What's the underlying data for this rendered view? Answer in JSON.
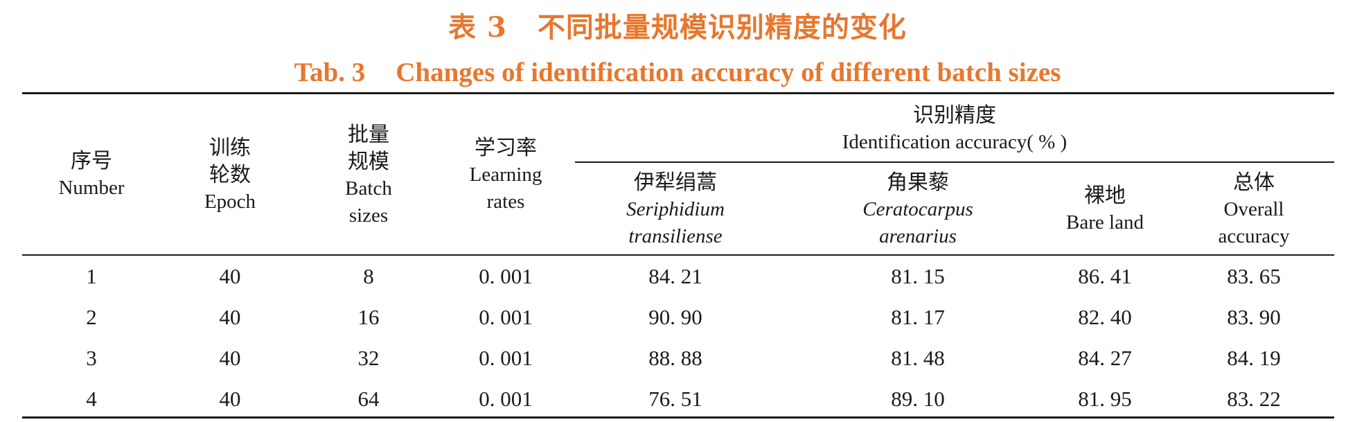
{
  "caption": {
    "cn_label": "表 3",
    "cn_title": "不同批量规模识别精度的变化",
    "en_label": "Tab. 3",
    "en_title": "Changes of identification accuracy of different batch sizes"
  },
  "headers": {
    "number": {
      "cn": "序号",
      "en": "Number"
    },
    "epoch": {
      "cn1": "训练",
      "cn2": "轮数",
      "en": "Epoch"
    },
    "batch": {
      "cn1": "批量",
      "cn2": "规模",
      "en1": "Batch",
      "en2": "sizes"
    },
    "lr": {
      "cn": "学习率",
      "en1": "Learning",
      "en2": "rates"
    },
    "accuracy_group": {
      "cn": "识别精度",
      "en": "Identification accuracy( % )"
    },
    "seriphidium": {
      "cn": "伊犁绢蒿",
      "it1": "Seriphidium",
      "it2": "transiliense"
    },
    "ceratocarpus": {
      "cn": "角果藜",
      "it1": "Ceratocarpus",
      "it2": "arenarius"
    },
    "bare": {
      "cn": "裸地",
      "en": "Bare land"
    },
    "overall": {
      "cn": "总体",
      "en1": "Overall",
      "en2": "accuracy"
    }
  },
  "rows": [
    {
      "number": "1",
      "epoch": "40",
      "batch": "8",
      "lr": "0. 001",
      "seriphidium": "84. 21",
      "ceratocarpus": "81. 15",
      "bare": "86. 41",
      "overall": "83. 65"
    },
    {
      "number": "2",
      "epoch": "40",
      "batch": "16",
      "lr": "0. 001",
      "seriphidium": "90. 90",
      "ceratocarpus": "81. 17",
      "bare": "82. 40",
      "overall": "83. 90"
    },
    {
      "number": "3",
      "epoch": "40",
      "batch": "32",
      "lr": "0. 001",
      "seriphidium": "88. 88",
      "ceratocarpus": "81. 48",
      "bare": "84. 27",
      "overall": "84. 19"
    },
    {
      "number": "4",
      "epoch": "40",
      "batch": "64",
      "lr": "0. 001",
      "seriphidium": "76. 51",
      "ceratocarpus": "89. 10",
      "bare": "81. 95",
      "overall": "83. 22"
    }
  ],
  "colors": {
    "caption": "#e8772e",
    "text": "#1a1a1a"
  }
}
